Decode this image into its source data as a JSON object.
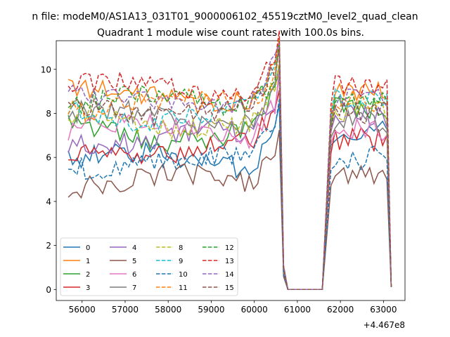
{
  "chart_data": {
    "type": "line",
    "suptitle": "n file: modeM0/AS1A13_031T01_9000006102_45519cztM0_level2_quad_clean",
    "title": "Quadrant 1 module wise count rates with 100.0s bins.",
    "xlabel": "",
    "ylabel": "",
    "x_offset_label": "+4.467e8",
    "xlim": [
      55400,
      63500
    ],
    "ylim": [
      -0.5,
      11.3
    ],
    "x_ticks": [
      56000,
      57000,
      58000,
      59000,
      60000,
      61000,
      62000,
      63000
    ],
    "y_ticks": [
      0,
      2,
      4,
      6,
      8,
      10
    ],
    "x_start": 55680,
    "x_step": 100,
    "gap_start": 60780,
    "gap_end": 61580,
    "legend_position": "lower-left",
    "grid": false,
    "series": [
      {
        "name": "0",
        "color": "#1f77b4",
        "dash": "solid",
        "level": 5.9,
        "post": 7.2
      },
      {
        "name": "1",
        "color": "#ff7f0e",
        "dash": "solid",
        "level": 8.8,
        "post": 8.9
      },
      {
        "name": "2",
        "color": "#2ca02c",
        "dash": "solid",
        "level": 7.1,
        "post": 8.2
      },
      {
        "name": "3",
        "color": "#d62728",
        "dash": "solid",
        "level": 6.3,
        "post": 6.8
      },
      {
        "name": "4",
        "color": "#9467bd",
        "dash": "solid",
        "level": 6.9,
        "post": 7.9
      },
      {
        "name": "5",
        "color": "#8c564b",
        "dash": "solid",
        "level": 4.9,
        "post": 5.2
      },
      {
        "name": "6",
        "color": "#e377c2",
        "dash": "solid",
        "level": 7.2,
        "post": 7.3
      },
      {
        "name": "7",
        "color": "#7f7f7f",
        "dash": "solid",
        "level": 7.8,
        "post": 7.6
      },
      {
        "name": "8",
        "color": "#bcbd22",
        "dash": "dashed",
        "level": 7.6,
        "post": 8.1
      },
      {
        "name": "9",
        "color": "#17becf",
        "dash": "dashed",
        "level": 8.0,
        "post": 8.6
      },
      {
        "name": "10",
        "color": "#1f77b4",
        "dash": "dashed",
        "level": 5.8,
        "post": 6.0
      },
      {
        "name": "11",
        "color": "#ff7f0e",
        "dash": "dashed",
        "level": 8.4,
        "post": 8.5
      },
      {
        "name": "12",
        "color": "#2ca02c",
        "dash": "dashed",
        "level": 8.5,
        "post": 8.7
      },
      {
        "name": "13",
        "color": "#d62728",
        "dash": "dashed",
        "level": 9.1,
        "post": 9.2
      },
      {
        "name": "14",
        "color": "#9467bd",
        "dash": "dashed",
        "level": 8.6,
        "post": 8.8
      },
      {
        "name": "15",
        "color": "#8c564b",
        "dash": "dashed",
        "level": 8.2,
        "post": 8.0
      }
    ]
  }
}
